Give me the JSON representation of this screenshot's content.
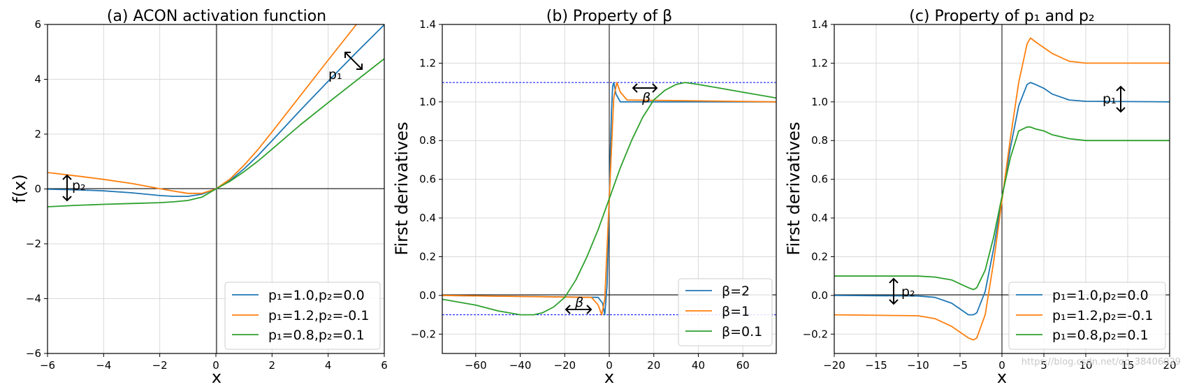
{
  "figure": {
    "watermark": "https://blog.csdn.net/qq_38406029"
  },
  "chart_data": [
    {
      "type": "line",
      "title": "(a) ACON activation function",
      "xlabel": "x",
      "ylabel": "f(x)",
      "xlim": [
        -6,
        6
      ],
      "ylim": [
        -6,
        6
      ],
      "xticks": [
        -6,
        -4,
        -2,
        0,
        2,
        4,
        6
      ],
      "yticks": [
        -6,
        -4,
        -2,
        0,
        2,
        4,
        6
      ],
      "xticklabels": [
        "−6",
        "−4",
        "−2",
        "0",
        "2",
        "4",
        "6"
      ],
      "yticklabels": [
        "−6",
        "−4",
        "−2",
        "0",
        "2",
        "4",
        "6"
      ],
      "grid": true,
      "legend_position": "lower-right",
      "x": [
        -6,
        -5,
        -4,
        -3,
        -2,
        -1.5,
        -1,
        -0.5,
        0,
        0.5,
        1,
        1.5,
        2,
        3,
        4,
        5,
        6
      ],
      "series": [
        {
          "name": "p₁=1.0,p₂=0.0",
          "color": "#1f77b4",
          "values": [
            -0.01,
            -0.03,
            -0.07,
            -0.14,
            -0.24,
            -0.27,
            -0.27,
            -0.19,
            0.0,
            0.31,
            0.73,
            1.22,
            1.76,
            2.86,
            3.93,
            4.97,
            5.99
          ]
        },
        {
          "name": "p₁=1.2,p₂=-0.1",
          "color": "#ff7f0e",
          "values": [
            0.6,
            0.48,
            0.35,
            0.2,
            0.01,
            -0.08,
            -0.16,
            -0.16,
            0.0,
            0.36,
            0.86,
            1.44,
            2.08,
            3.39,
            4.7,
            5.99,
            7.2
          ]
        },
        {
          "name": "p₁=0.8,p₂=0.1",
          "color": "#2ca02c",
          "values": [
            -0.65,
            -0.6,
            -0.56,
            -0.53,
            -0.5,
            -0.47,
            -0.42,
            -0.3,
            0.0,
            0.28,
            0.63,
            1.02,
            1.45,
            2.33,
            3.15,
            3.95,
            4.75
          ]
        }
      ],
      "annotations": [
        {
          "text": "p₁",
          "x": 4.0,
          "y": 4.1
        },
        {
          "text": "p₂",
          "x": -5.5,
          "y": 0.15
        }
      ]
    },
    {
      "type": "line",
      "title": "(b) Property of β",
      "xlabel": "x",
      "ylabel": "First derivatives",
      "xlim": [
        -75,
        75
      ],
      "ylim": [
        -0.3,
        1.4
      ],
      "xticks": [
        -60,
        -40,
        -20,
        0,
        20,
        40,
        60
      ],
      "yticks": [
        -0.2,
        0.0,
        0.2,
        0.4,
        0.6,
        0.8,
        1.0,
        1.2,
        1.4
      ],
      "xticklabels": [
        "−60",
        "−40",
        "−20",
        "0",
        "20",
        "40",
        "60"
      ],
      "yticklabels": [
        "−0.2",
        "0.0",
        "0.2",
        "0.4",
        "0.6",
        "0.8",
        "1.0",
        "1.2",
        "1.4"
      ],
      "grid": true,
      "legend_position": "lower-right",
      "reference_lines_y": [
        1.1,
        -0.1
      ],
      "series": [
        {
          "name": "β=2",
          "color": "#1f77b4",
          "x": [
            -75,
            -5,
            -3,
            -2,
            -1,
            -0.5,
            0,
            0.5,
            1,
            1.5,
            2,
            3,
            5,
            75
          ],
          "y": [
            0.0,
            -0.01,
            -0.04,
            -0.1,
            0.05,
            0.25,
            0.5,
            0.75,
            0.95,
            1.08,
            1.1,
            1.04,
            1.0,
            1.0
          ]
        },
        {
          "name": "β=1",
          "color": "#ff7f0e",
          "x": [
            -75,
            -8,
            -5,
            -3.4,
            -2,
            -1,
            0,
            1,
            2,
            3.4,
            5,
            8,
            75
          ],
          "y": [
            0.0,
            -0.01,
            -0.05,
            -0.1,
            -0.02,
            0.24,
            0.5,
            0.76,
            1.02,
            1.1,
            1.05,
            1.01,
            1.0
          ]
        },
        {
          "name": "β=0.1",
          "color": "#2ca02c",
          "x": [
            -75,
            -60,
            -50,
            -40,
            -34,
            -30,
            -25,
            -20,
            -15,
            -10,
            -5,
            0,
            5,
            10,
            15,
            20,
            25,
            30,
            34,
            40,
            50,
            60,
            75
          ],
          "y": [
            -0.02,
            -0.05,
            -0.08,
            -0.1,
            -0.1,
            -0.09,
            -0.06,
            -0.01,
            0.08,
            0.2,
            0.34,
            0.5,
            0.66,
            0.8,
            0.92,
            1.01,
            1.06,
            1.09,
            1.1,
            1.09,
            1.07,
            1.05,
            1.02
          ]
        }
      ],
      "annotations": [
        {
          "text": "β",
          "x": 17,
          "y": 1.02
        },
        {
          "text": "β",
          "x": -13,
          "y": -0.04
        }
      ]
    },
    {
      "type": "line",
      "title": "(c) Property of p₁ and p₂",
      "xlabel": "x",
      "ylabel": "First derivatives",
      "xlim": [
        -20,
        20
      ],
      "ylim": [
        -0.3,
        1.4
      ],
      "xticks": [
        -20,
        -15,
        -10,
        -5,
        0,
        5,
        10,
        15,
        20
      ],
      "yticks": [
        -0.2,
        0.0,
        0.2,
        0.4,
        0.6,
        0.8,
        1.0,
        1.2,
        1.4
      ],
      "xticklabels": [
        "−20",
        "−15",
        "−10",
        "−5",
        "0",
        "5",
        "10",
        "15",
        "20"
      ],
      "yticklabels": [
        "−0.2",
        "0.0",
        "0.2",
        "0.4",
        "0.6",
        "0.8",
        "1.0",
        "1.2",
        "1.4"
      ],
      "grid": true,
      "legend_position": "lower-right",
      "x": [
        -20,
        -10,
        -8,
        -6,
        -5,
        -4,
        -3.4,
        -3,
        -2,
        -1,
        0,
        1,
        2,
        3,
        3.4,
        4,
        5,
        6,
        8,
        10,
        20
      ],
      "series": [
        {
          "name": "p₁=1.0,p₂=0.0",
          "color": "#1f77b4",
          "values": [
            0.0,
            -0.003,
            -0.01,
            -0.04,
            -0.07,
            -0.1,
            -0.1,
            -0.09,
            0.02,
            0.24,
            0.5,
            0.76,
            0.98,
            1.09,
            1.1,
            1.09,
            1.07,
            1.04,
            1.01,
            1.003,
            1.0
          ]
        },
        {
          "name": "p₁=1.2,p₂=-0.1",
          "color": "#ff7f0e",
          "values": [
            -0.1,
            -0.105,
            -0.12,
            -0.16,
            -0.19,
            -0.22,
            -0.23,
            -0.22,
            -0.1,
            0.17,
            0.49,
            0.81,
            1.1,
            1.3,
            1.33,
            1.31,
            1.28,
            1.25,
            1.21,
            1.2,
            1.2
          ]
        },
        {
          "name": "p₁=0.8,p₂=0.1",
          "color": "#2ca02c",
          "values": [
            0.1,
            0.1,
            0.095,
            0.08,
            0.06,
            0.04,
            0.03,
            0.04,
            0.13,
            0.3,
            0.51,
            0.71,
            0.85,
            0.87,
            0.87,
            0.86,
            0.85,
            0.83,
            0.81,
            0.8,
            0.8
          ]
        }
      ],
      "annotations": [
        {
          "text": "p₁",
          "x": 12.3,
          "y": 1.0
        },
        {
          "text": "p₂",
          "x": -12.3,
          "y": 0.02
        }
      ]
    }
  ]
}
